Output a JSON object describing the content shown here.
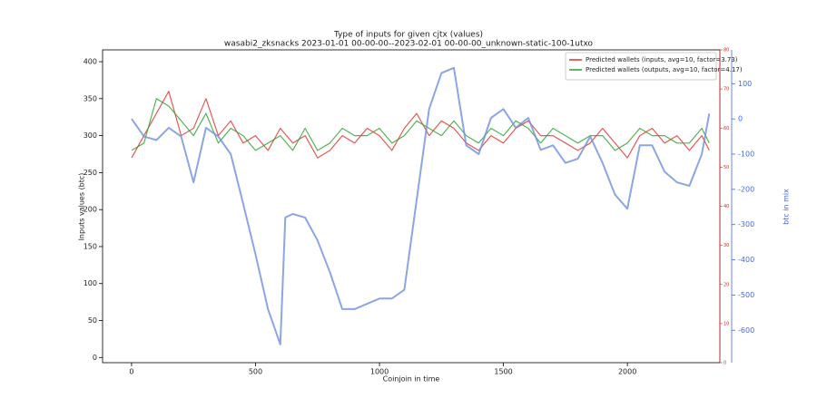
{
  "chart_data": {
    "type": "line",
    "title": "Type of inputs for given cjtx (values)",
    "subtitle": "wasabi2_zksnacks 2023-01-01 00-00-00--2023-02-01 00-00-00_unknown-static-100-1utxo",
    "x_label": "Coinjoin in time",
    "y_label": "Inputs values (btc)",
    "y2_label": "btc in mix",
    "xlim": [
      -117,
      2373
    ],
    "xticks": [
      0,
      500,
      1000,
      1500,
      2000
    ],
    "ylim": [
      -7,
      416
    ],
    "yticks": [
      0,
      50,
      100,
      150,
      200,
      250,
      300,
      350,
      400
    ],
    "y2lim": [
      -692,
      196
    ],
    "y2ticks": [
      -600,
      -500,
      -400,
      -300,
      -200,
      -100,
      0,
      100
    ],
    "y2color": "#4169e1",
    "y3lim": [
      0,
      80
    ],
    "y3ticks": [
      0,
      10,
      20,
      30,
      40,
      50,
      60,
      70,
      80
    ],
    "y3color": "#d62728",
    "legend": "upper right",
    "series": [
      {
        "name": "Predicted wallets (inputs, avg=10, factor=3.73)",
        "color": "#e0302a",
        "x": [
          0,
          50,
          100,
          150,
          200,
          250,
          300,
          350,
          400,
          450,
          500,
          550,
          600,
          650,
          700,
          750,
          800,
          850,
          900,
          950,
          1000,
          1050,
          1100,
          1150,
          1200,
          1250,
          1300,
          1350,
          1400,
          1450,
          1500,
          1550,
          1600,
          1650,
          1700,
          1750,
          1800,
          1850,
          1900,
          1950,
          2000,
          2050,
          2100,
          2150,
          2200,
          2250,
          2300,
          2330
        ],
        "values": [
          270,
          300,
          330,
          360,
          300,
          310,
          350,
          300,
          320,
          290,
          300,
          280,
          310,
          290,
          300,
          270,
          280,
          300,
          290,
          310,
          300,
          280,
          310,
          330,
          300,
          320,
          310,
          290,
          280,
          300,
          290,
          310,
          320,
          300,
          300,
          290,
          280,
          290,
          310,
          290,
          270,
          300,
          310,
          290,
          300,
          280,
          300,
          280
        ]
      },
      {
        "name": "Predicted wallets (outputs, avg=10, factor=4.17)",
        "color": "#2ca02c",
        "x": [
          0,
          50,
          100,
          150,
          200,
          250,
          300,
          350,
          400,
          450,
          500,
          550,
          600,
          650,
          700,
          750,
          800,
          850,
          900,
          950,
          1000,
          1050,
          1100,
          1150,
          1200,
          1250,
          1300,
          1350,
          1400,
          1450,
          1500,
          1550,
          1600,
          1650,
          1700,
          1750,
          1800,
          1850,
          1900,
          1950,
          2000,
          2050,
          2100,
          2150,
          2200,
          2250,
          2300,
          2330
        ],
        "values": [
          280,
          290,
          350,
          340,
          320,
          300,
          330,
          290,
          310,
          300,
          280,
          290,
          300,
          280,
          310,
          280,
          290,
          310,
          300,
          300,
          310,
          290,
          300,
          320,
          310,
          300,
          320,
          300,
          290,
          310,
          300,
          320,
          310,
          290,
          310,
          300,
          290,
          300,
          300,
          280,
          290,
          310,
          300,
          300,
          290,
          290,
          310,
          290
        ]
      },
      {
        "color": "#6f8fdc",
        "axis": "y2",
        "x": [
          0,
          50,
          100,
          150,
          200,
          250,
          300,
          350,
          400,
          450,
          500,
          550,
          600,
          620,
          650,
          700,
          750,
          800,
          850,
          900,
          950,
          1000,
          1050,
          1100,
          1150,
          1200,
          1250,
          1300,
          1350,
          1400,
          1450,
          1500,
          1550,
          1600,
          1650,
          1700,
          1750,
          1800,
          1850,
          1900,
          1950,
          2000,
          2050,
          2100,
          2150,
          2200,
          2250,
          2300,
          2330
        ],
        "values": [
          0,
          -50,
          -60,
          -25,
          -50,
          -180,
          -25,
          -50,
          -100,
          -240,
          -385,
          -540,
          -640,
          -280,
          -270,
          -280,
          -345,
          -435,
          -540,
          -540,
          -525,
          -510,
          -510,
          -485,
          -230,
          28,
          130,
          145,
          -75,
          -100,
          3,
          28,
          -25,
          3,
          -88,
          -75,
          -125,
          -113,
          -50,
          -125,
          -215,
          -255,
          -75,
          -75,
          -150,
          -180,
          -190,
          -100,
          15
        ]
      }
    ]
  }
}
